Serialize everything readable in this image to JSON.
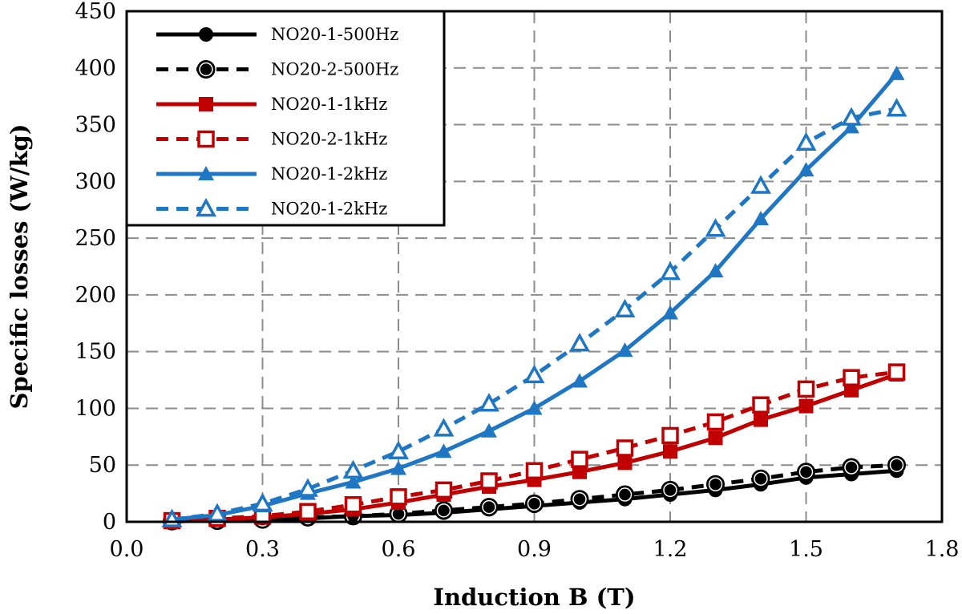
{
  "chart_data": {
    "type": "line",
    "xlabel": "Induction B (T)",
    "ylabel": "Specific losses (W/kg)",
    "xlim": [
      0.0,
      1.8
    ],
    "ylim": [
      0,
      450
    ],
    "x_ticks": [
      "0.0",
      "0.3",
      "0.6",
      "0.9",
      "1.2",
      "1.5",
      "1.8"
    ],
    "y_ticks": [
      "0",
      "50",
      "100",
      "150",
      "200",
      "250",
      "300",
      "350",
      "400",
      "450"
    ],
    "grid": true,
    "legend_position": "top-left",
    "x": [
      0.1,
      0.2,
      0.3,
      0.4,
      0.5,
      0.6,
      0.7,
      0.8,
      0.9,
      1.0,
      1.1,
      1.2,
      1.3,
      1.4,
      1.5,
      1.6,
      1.7
    ],
    "series": [
      {
        "name": "NO20-1-500Hz",
        "color": "#000000",
        "dash": "solid",
        "marker": "circle-filled-small",
        "values": [
          0.5,
          1,
          2,
          3,
          5,
          6,
          8,
          11,
          14,
          17,
          20,
          24,
          28,
          33,
          39,
          42,
          45
        ]
      },
      {
        "name": "NO20-2-500Hz",
        "color": "#000000",
        "dash": "dashed",
        "marker": "circle-open-large",
        "values": [
          0.5,
          1,
          2,
          4,
          5,
          7,
          10,
          13,
          16,
          20,
          24,
          28,
          33,
          38,
          44,
          48,
          50
        ]
      },
      {
        "name": "NO20-1-1kHz",
        "color": "#c00000",
        "dash": "solid",
        "marker": "square-filled",
        "values": [
          1,
          2,
          4,
          7,
          11,
          17,
          24,
          31,
          37,
          44,
          52,
          62,
          74,
          90,
          102,
          116,
          130
        ]
      },
      {
        "name": "NO20-2-1kHz",
        "color": "#c00000",
        "dash": "dashed",
        "marker": "square-open",
        "values": [
          1,
          3,
          5,
          9,
          15,
          22,
          28,
          36,
          45,
          55,
          65,
          76,
          88,
          103,
          117,
          127,
          132
        ]
      },
      {
        "name": "NO20-1-2kHz",
        "color": "#1f77c4",
        "dash": "solid",
        "marker": "triangle-filled",
        "values": [
          2,
          6,
          14,
          25,
          35,
          47,
          62,
          80,
          100,
          124,
          151,
          184,
          221,
          267,
          310,
          348,
          395
        ]
      },
      {
        "name": "NO20-1-2kHz",
        "color": "#1f77c4",
        "dash": "dashed",
        "marker": "triangle-open",
        "values": [
          2,
          7,
          16,
          29,
          45,
          62,
          82,
          104,
          129,
          157,
          187,
          220,
          258,
          296,
          334,
          356,
          364
        ]
      }
    ]
  }
}
